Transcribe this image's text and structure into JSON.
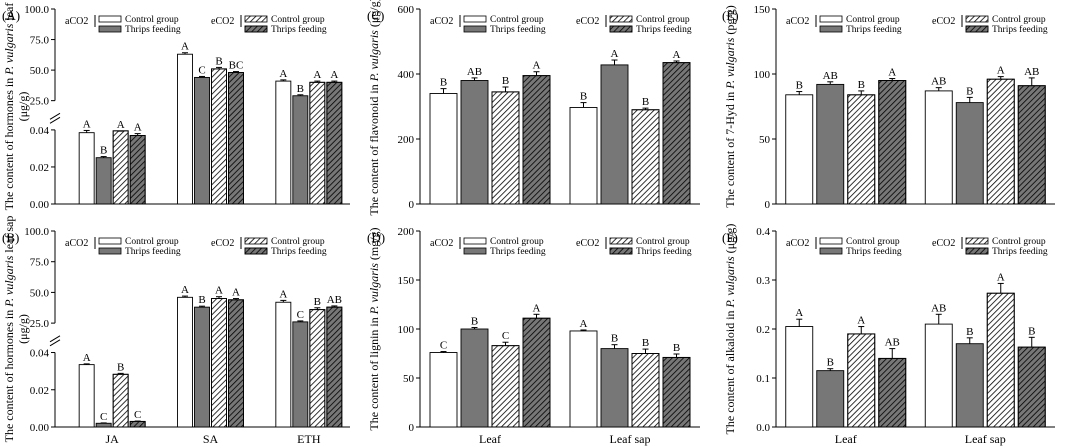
{
  "legend": {
    "aco2": "aCO2",
    "eco2": "eCO2",
    "control": "Control group",
    "thrips": "Thrips feeding"
  },
  "series_style": [
    {
      "co2": "aCO2",
      "treatment": "Control group",
      "fill": "#ffffff",
      "hatch": false
    },
    {
      "co2": "aCO2",
      "treatment": "Thrips feeding",
      "fill": "#777777",
      "hatch": false
    },
    {
      "co2": "eCO2",
      "treatment": "Control group",
      "fill": "#ffffff",
      "hatch": true
    },
    {
      "co2": "eCO2",
      "treatment": "Thrips feeding",
      "fill": "#777777",
      "hatch": true
    }
  ],
  "chart_data": [
    {
      "panel": "(A)",
      "type": "bar",
      "ylabel_parts": [
        "The content of hormones in ",
        "P. vulgaris",
        " leaf"
      ],
      "ylabel_unit": "(μg/g)",
      "axis_break": {
        "lower": [
          0,
          0.04
        ],
        "upper": [
          25,
          100
        ]
      },
      "lower_ticks": [
        "0.00",
        "0.02",
        "0.04"
      ],
      "upper_ticks": [
        "25.0",
        "50.0",
        "75.0",
        "100.0"
      ],
      "categories": [
        "JA",
        "SA",
        "ETH"
      ],
      "show_categories": false,
      "values": [
        [
          0.0385,
          0.025,
          0.0395,
          0.037
        ],
        [
          63,
          44,
          51,
          48
        ],
        [
          41,
          29,
          40,
          40
        ]
      ],
      "errors": [
        [
          0.0012,
          0.0006,
          0.0008,
          0.001
        ],
        [
          1.2,
          0.8,
          1.2,
          0.8
        ],
        [
          1.0,
          0.8,
          1.0,
          1.0
        ]
      ],
      "letters": [
        [
          "A",
          "B",
          "A",
          "A"
        ],
        [
          "A",
          "C",
          "B",
          "BC"
        ],
        [
          "A",
          "B",
          "A",
          "A"
        ]
      ]
    },
    {
      "panel": "(B)",
      "type": "bar",
      "ylabel_parts": [
        "The content of hormones in ",
        "P. vulgaris",
        " leaf sap"
      ],
      "ylabel_unit": "(μg/g)",
      "axis_break": {
        "lower": [
          0,
          0.04
        ],
        "upper": [
          25,
          100
        ]
      },
      "lower_ticks": [
        "0.00",
        "0.02",
        "0.04"
      ],
      "upper_ticks": [
        "25.0",
        "50.0",
        "75.0",
        "100.0"
      ],
      "categories": [
        "JA",
        "SA",
        "ETH"
      ],
      "show_categories": true,
      "values": [
        [
          0.0335,
          0.002,
          0.0283,
          0.003
        ],
        [
          46,
          38,
          45,
          44
        ],
        [
          42,
          26,
          36,
          38
        ]
      ],
      "errors": [
        [
          0.0004,
          0.0002,
          0.0005,
          0.0002
        ],
        [
          1.0,
          0.8,
          1.5,
          1.0
        ],
        [
          1.5,
          0.8,
          1.5,
          1.0
        ]
      ],
      "letters": [
        [
          "A",
          "C",
          "B",
          "C"
        ],
        [
          "A",
          "B",
          "A",
          "A"
        ],
        [
          "A",
          "C",
          "B",
          "AB"
        ]
      ]
    },
    {
      "panel": "(C)",
      "type": "bar",
      "ylabel_parts": [
        "The content of flavonoid in ",
        "P. vulgaris",
        " (μg/g)"
      ],
      "ylim": [
        0,
        600
      ],
      "ticks": [
        "0",
        "200",
        "400",
        "600"
      ],
      "categories": [
        "Leaf",
        "Leaf sap"
      ],
      "show_categories": false,
      "values": [
        [
          340,
          380,
          345,
          395
        ],
        [
          297,
          428,
          290,
          435
        ]
      ],
      "errors": [
        [
          15,
          8,
          15,
          12
        ],
        [
          15,
          15,
          5,
          5
        ]
      ],
      "letters": [
        [
          "B",
          "AB",
          "B",
          "A"
        ],
        [
          "B",
          "A",
          "B",
          "A"
        ]
      ]
    },
    {
      "panel": "(D)",
      "type": "bar",
      "ylabel_parts": [
        "The content of lignin in ",
        "P. vulgaris",
        " (mg/g)"
      ],
      "ylim": [
        0,
        200
      ],
      "ticks": [
        "0",
        "50",
        "100",
        "150",
        "200"
      ],
      "categories": [
        "Leaf",
        "Leaf sap"
      ],
      "show_categories": true,
      "values": [
        [
          76,
          100,
          83,
          111
        ],
        [
          98,
          80,
          75,
          71
        ]
      ],
      "errors": [
        [
          1.0,
          1.5,
          3.5,
          4.0
        ],
        [
          1.0,
          4.0,
          4.5,
          3.5
        ]
      ],
      "letters": [
        [
          "C",
          "B",
          "C",
          "A"
        ],
        [
          "A",
          "B",
          "B",
          "B"
        ]
      ]
    },
    {
      "panel": "(E)",
      "type": "bar",
      "ylabel_parts": [
        "The content of 7-Hyd in ",
        "P. vulgaris",
        " (pg/g)"
      ],
      "ylim": [
        0,
        150
      ],
      "ticks": [
        "0",
        "50",
        "100",
        "150"
      ],
      "categories": [
        "Leaf",
        "Leaf sap"
      ],
      "show_categories": false,
      "values": [
        [
          84,
          92,
          84,
          95
        ],
        [
          87,
          78,
          96,
          91
        ]
      ],
      "errors": [
        [
          2.5,
          2.0,
          3.0,
          1.5
        ],
        [
          2.5,
          4.0,
          2.0,
          6.0
        ]
      ],
      "letters": [
        [
          "B",
          "AB",
          "B",
          "A"
        ],
        [
          "AB",
          "B",
          "A",
          "AB"
        ]
      ]
    },
    {
      "panel": "(F)",
      "type": "bar",
      "ylabel_parts": [
        "The content of alkaloid in ",
        "P. vulgaris",
        " (μg/g)"
      ],
      "ylim": [
        0,
        0.4
      ],
      "ticks": [
        "0.0",
        "0.1",
        "0.2",
        "0.3",
        "0.4"
      ],
      "categories": [
        "Leaf",
        "Leaf sap"
      ],
      "show_categories": true,
      "values": [
        [
          0.205,
          0.115,
          0.19,
          0.14
        ],
        [
          0.21,
          0.17,
          0.273,
          0.163
        ]
      ],
      "errors": [
        [
          0.015,
          0.004,
          0.015,
          0.02
        ],
        [
          0.02,
          0.012,
          0.02,
          0.02
        ]
      ],
      "letters": [
        [
          "A",
          "B",
          "A",
          "AB"
        ],
        [
          "AB",
          "B",
          "A",
          "B"
        ]
      ]
    }
  ]
}
